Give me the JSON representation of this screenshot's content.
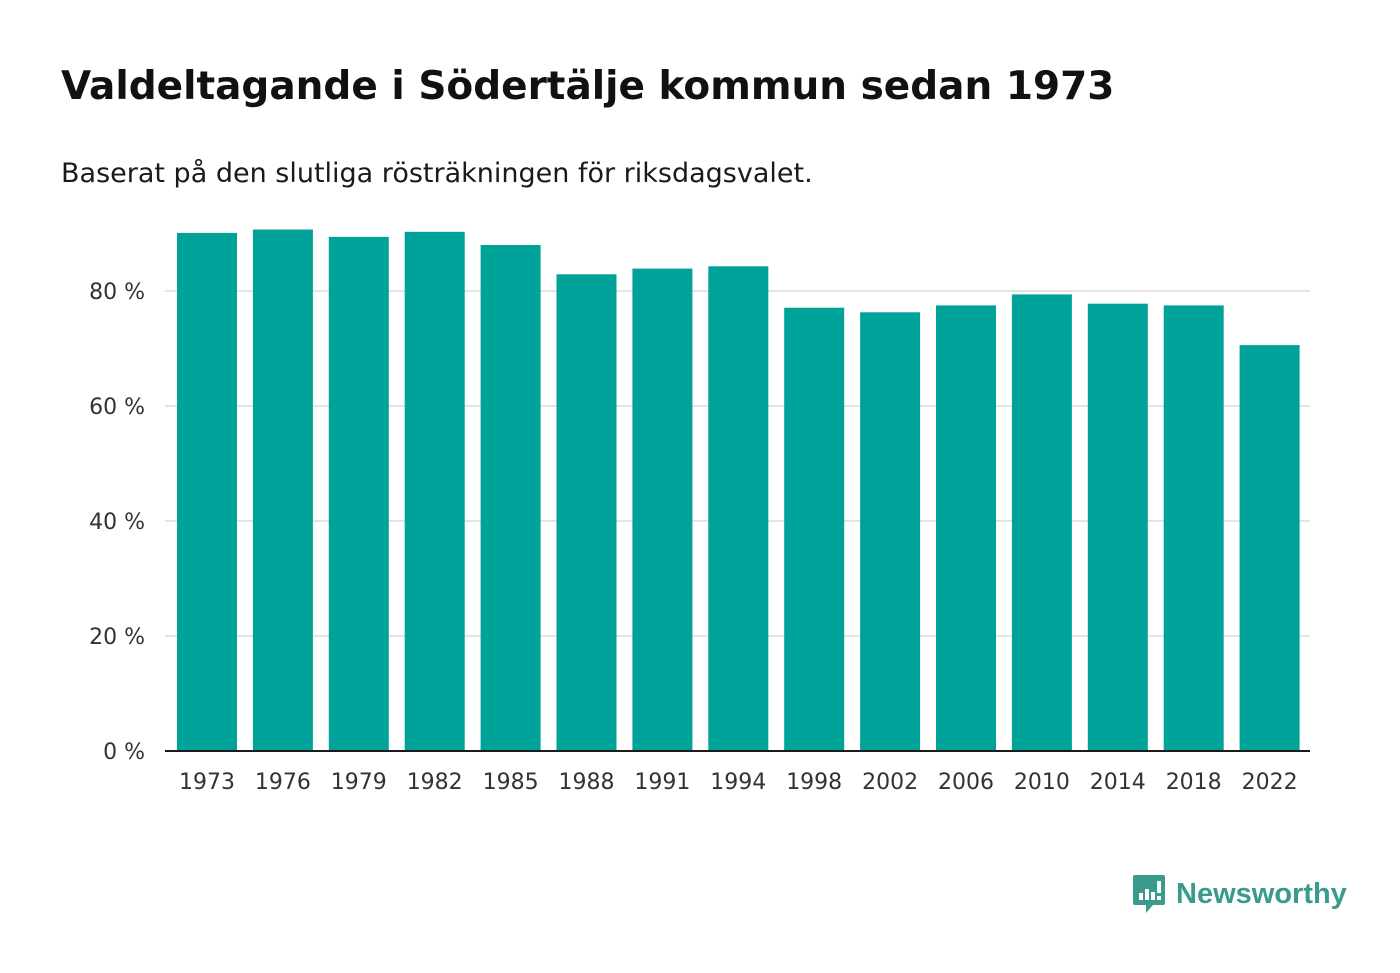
{
  "title": "Valdeltagande i Södertälje kommun sedan 1973",
  "subtitle": "Baserat på den slutliga rösträkningen för riksdagsvalet.",
  "brand": {
    "name": "Newsworthy",
    "color": "#3a9a8e",
    "icon": "newsworthy-logo-icon"
  },
  "colors": {
    "bar": "#00a39a",
    "grid": "#dcdcdc",
    "axis": "#1a1a1a",
    "tick_text": "#333333"
  },
  "chart_data": {
    "type": "bar",
    "title": "Valdeltagande i Södertälje kommun sedan 1973",
    "subtitle": "Baserat på den slutliga rösträkningen för riksdagsvalet.",
    "xlabel": "",
    "ylabel": "",
    "categories": [
      "1973",
      "1976",
      "1979",
      "1982",
      "1985",
      "1988",
      "1991",
      "1994",
      "1998",
      "2002",
      "2006",
      "2010",
      "2014",
      "2018",
      "2022"
    ],
    "values": [
      90.1,
      90.7,
      89.4,
      90.3,
      88.0,
      82.9,
      83.9,
      84.3,
      77.1,
      76.3,
      77.5,
      79.4,
      77.8,
      77.5,
      70.6
    ],
    "ylim": [
      0,
      92
    ],
    "yticks": [
      0,
      20,
      40,
      60,
      80
    ],
    "ytick_labels": [
      "0 %",
      "20 %",
      "40 %",
      "60 %",
      "80 %"
    ],
    "grid": true,
    "legend": "none"
  }
}
